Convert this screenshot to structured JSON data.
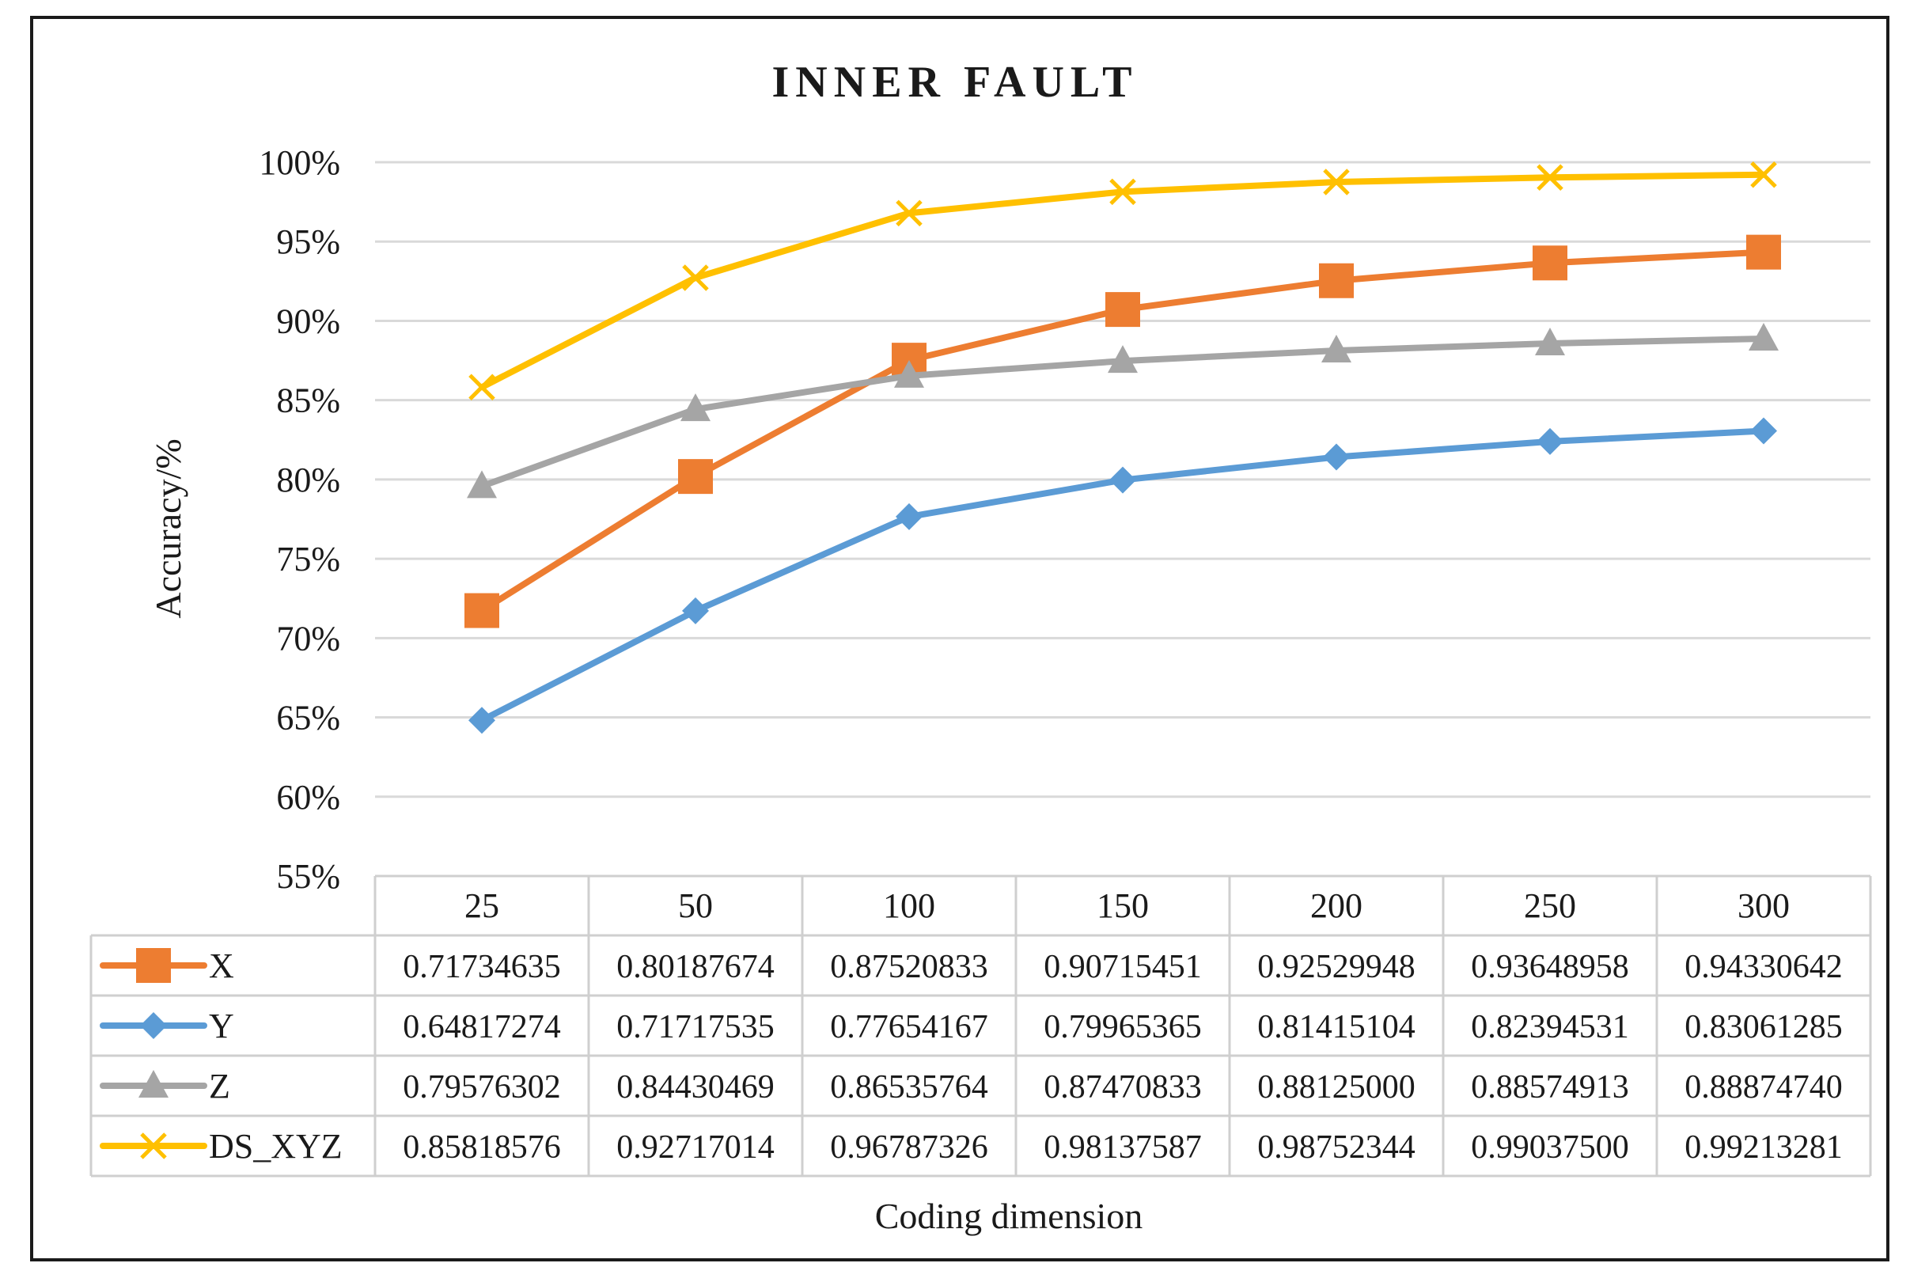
{
  "chart_data": {
    "type": "line",
    "title": "INNER FAULT",
    "xlabel": "Coding dimension",
    "ylabel": "Accuracy/%",
    "ylim": [
      0.55,
      1.0
    ],
    "yticks": [
      "55%",
      "60%",
      "65%",
      "70%",
      "75%",
      "80%",
      "85%",
      "90%",
      "95%",
      "100%"
    ],
    "categories": [
      "25",
      "50",
      "100",
      "150",
      "200",
      "250",
      "300"
    ],
    "grid": "horizontal",
    "legend": "data table below chart",
    "series": [
      {
        "name": "X",
        "color": "#ED7D31",
        "marker": "square",
        "values": [
          0.71734635,
          0.80187674,
          0.87520833,
          0.90715451,
          0.92529948,
          0.93648958,
          0.94330642
        ],
        "table": [
          "0.71734635",
          "0.80187674",
          "0.87520833",
          "0.90715451",
          "0.92529948",
          "0.93648958",
          "0.94330642"
        ]
      },
      {
        "name": "Y",
        "color": "#5B9BD5",
        "marker": "diamond",
        "values": [
          0.64817274,
          0.71717535,
          0.77654167,
          0.79965365,
          0.81415104,
          0.82394531,
          0.83061285
        ],
        "table": [
          "0.64817274",
          "0.71717535",
          "0.77654167",
          "0.79965365",
          "0.81415104",
          "0.82394531",
          "0.83061285"
        ]
      },
      {
        "name": "Z",
        "color": "#A5A5A5",
        "marker": "triangle",
        "values": [
          0.79576302,
          0.84430469,
          0.86535764,
          0.87470833,
          0.88125,
          0.88574913,
          0.8887474
        ],
        "table": [
          "0.79576302",
          "0.84430469",
          "0.86535764",
          "0.87470833",
          "0.88125000",
          "0.88574913",
          "0.88874740"
        ]
      },
      {
        "name": "DS_XYZ",
        "color": "#FFC000",
        "marker": "x",
        "values": [
          0.85818576,
          0.92717014,
          0.96787326,
          0.98137587,
          0.98752344,
          0.990375,
          0.99213281
        ],
        "table": [
          "0.85818576",
          "0.92717014",
          "0.96787326",
          "0.98137587",
          "0.98752344",
          "0.99037500",
          "0.99213281"
        ]
      }
    ]
  }
}
